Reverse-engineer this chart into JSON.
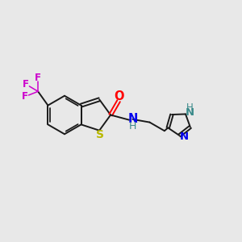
{
  "background_color": "#e8e8e8",
  "bond_color": "#1a1a1a",
  "sulfur_color": "#b8b800",
  "oxygen_color": "#ff0000",
  "nitrogen_color": "#0000ee",
  "nitrogen_h_color": "#3a8a8a",
  "cf3_color": "#cc00cc",
  "figsize": [
    3.0,
    3.0
  ],
  "dpi": 100,
  "xlim": [
    0,
    12
  ],
  "ylim": [
    0,
    10
  ]
}
